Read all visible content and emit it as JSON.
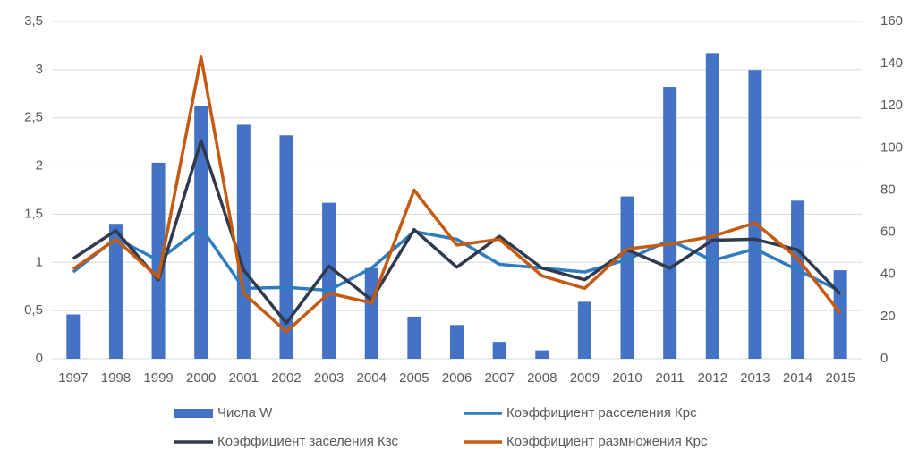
{
  "chart_data": {
    "type": "bar_line",
    "categories": [
      "1997",
      "1998",
      "1999",
      "2000",
      "2001",
      "2002",
      "2003",
      "2004",
      "2005",
      "2006",
      "2007",
      "2008",
      "2009",
      "2010",
      "2011",
      "2012",
      "2013",
      "2014",
      "2015"
    ],
    "series": [
      {
        "name": "Числа W",
        "type": "bar",
        "axis": "y2",
        "color": "#4472c4",
        "values": [
          21,
          64,
          93,
          120,
          111,
          106,
          74,
          43,
          20,
          16,
          8,
          4,
          27,
          77,
          129,
          145,
          137,
          75,
          42
        ]
      },
      {
        "name": "Коэффициент расселения Крс",
        "type": "line",
        "color": "#2e7dc0",
        "values": [
          0.9,
          1.25,
          1.02,
          1.36,
          0.73,
          0.74,
          0.71,
          0.94,
          1.32,
          1.24,
          0.98,
          0.94,
          0.9,
          1.03,
          1.23,
          1.02,
          1.14,
          0.92,
          0.7
        ]
      },
      {
        "name": "Коэффициент заселения Кзс",
        "type": "line",
        "color": "#2f3a4e",
        "values": [
          1.04,
          1.33,
          0.82,
          2.26,
          0.92,
          0.37,
          0.96,
          0.61,
          1.34,
          0.95,
          1.27,
          0.94,
          0.82,
          1.13,
          0.94,
          1.23,
          1.24,
          1.13,
          0.67
        ]
      },
      {
        "name": "Коэффициент размножения Крс",
        "type": "line",
        "color": "#c55a11",
        "values": [
          0.93,
          1.24,
          0.84,
          3.13,
          0.68,
          0.28,
          0.68,
          0.58,
          1.75,
          1.18,
          1.24,
          0.86,
          0.73,
          1.14,
          1.19,
          1.27,
          1.41,
          1.04,
          0.47
        ]
      }
    ],
    "ylim": [
      0,
      3.5
    ],
    "yticks": [
      0,
      {
        "value": 0.5,
        "label": "0,5"
      },
      1,
      {
        "value": 1.5,
        "label": "1,5"
      },
      2,
      {
        "value": 2.5,
        "label": "2,5"
      },
      3,
      {
        "value": 3.5,
        "label": "3,5"
      }
    ],
    "y2lim": [
      0,
      160
    ],
    "y2ticks": [
      0,
      20,
      40,
      60,
      80,
      100,
      120,
      140,
      160
    ],
    "grid": true,
    "legend": "bottom"
  }
}
